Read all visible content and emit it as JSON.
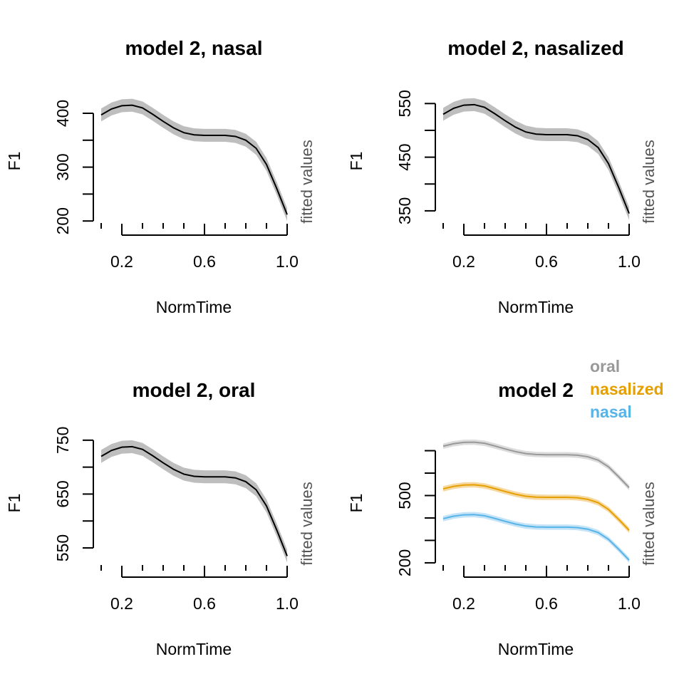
{
  "chart_data": [
    {
      "type": "line",
      "title": "model 2, nasal",
      "xlabel": "NormTime",
      "ylabel": "F1",
      "side_label": "fitted values",
      "xlim": [
        0.1,
        1.0
      ],
      "xticks": [
        0.2,
        0.6,
        {
          "value": 1,
          "label": "1.0"
        }
      ],
      "minor_xticks": [
        0.1,
        0.3,
        0.4,
        0.5,
        0.7,
        0.8,
        0.9
      ],
      "ylim": [
        187,
        441
      ],
      "yticks": [
        200,
        300,
        400
      ],
      "minor_yticks": [
        250,
        350
      ],
      "x": [
        0.1,
        0.15,
        0.2,
        0.25,
        0.3,
        0.35,
        0.4,
        0.45,
        0.5,
        0.55,
        0.6,
        0.65,
        0.7,
        0.75,
        0.8,
        0.85,
        0.9,
        0.95,
        1.0
      ],
      "series": [
        {
          "color": "#000000",
          "band_color": "#bebebe",
          "values": [
            397,
            408,
            414,
            415,
            410,
            398,
            385,
            373,
            364,
            360,
            359,
            359,
            359,
            357,
            350,
            335,
            305,
            260,
            212
          ],
          "lower": [
            385,
            396,
            402,
            403,
            398,
            386,
            373,
            361,
            352,
            348,
            347,
            347,
            347,
            345,
            338,
            323,
            293,
            248,
            200
          ],
          "upper": [
            409,
            420,
            426,
            427,
            422,
            410,
            397,
            385,
            376,
            372,
            371,
            371,
            371,
            369,
            362,
            347,
            317,
            272,
            224
          ]
        }
      ]
    },
    {
      "type": "line",
      "title": "model 2, nasalized",
      "xlabel": "NormTime",
      "ylabel": "F1",
      "side_label": "fitted values",
      "xlim": [
        0.1,
        1.0
      ],
      "xticks": [
        0.2,
        0.6,
        {
          "value": 1,
          "label": "1.0"
        }
      ],
      "minor_xticks": [
        0.1,
        0.3,
        0.4,
        0.5,
        0.7,
        0.8,
        0.9
      ],
      "ylim": [
        318,
        573
      ],
      "yticks": [
        350,
        450,
        550
      ],
      "minor_yticks": [
        400,
        500
      ],
      "x": [
        0.1,
        0.15,
        0.2,
        0.25,
        0.3,
        0.35,
        0.4,
        0.45,
        0.5,
        0.55,
        0.6,
        0.65,
        0.7,
        0.75,
        0.8,
        0.85,
        0.9,
        0.95,
        1.0
      ],
      "series": [
        {
          "color": "#000000",
          "band_color": "#bebebe",
          "values": [
            530,
            541,
            547,
            548,
            543,
            531,
            518,
            506,
            497,
            493,
            492,
            492,
            492,
            490,
            483,
            468,
            438,
            393,
            345
          ],
          "lower": [
            518,
            529,
            535,
            536,
            531,
            519,
            506,
            494,
            485,
            481,
            480,
            480,
            480,
            478,
            471,
            456,
            426,
            381,
            333
          ],
          "upper": [
            542,
            553,
            559,
            560,
            555,
            543,
            530,
            518,
            509,
            505,
            504,
            504,
            504,
            502,
            495,
            480,
            450,
            405,
            357
          ]
        }
      ]
    },
    {
      "type": "line",
      "title": "model 2, oral",
      "xlabel": "NormTime",
      "ylabel": "F1",
      "side_label": "fitted values",
      "xlim": [
        0.1,
        1.0
      ],
      "xticks": [
        0.2,
        0.6,
        {
          "value": 1,
          "label": "1.0"
        }
      ],
      "minor_xticks": [
        0.1,
        0.3,
        0.4,
        0.5,
        0.7,
        0.8,
        0.9
      ],
      "ylim": [
        509,
        763
      ],
      "yticks": [
        550,
        650,
        750
      ],
      "minor_yticks": [
        600,
        700
      ],
      "x": [
        0.1,
        0.15,
        0.2,
        0.25,
        0.3,
        0.35,
        0.4,
        0.45,
        0.5,
        0.55,
        0.6,
        0.65,
        0.7,
        0.75,
        0.8,
        0.85,
        0.9,
        0.95,
        1.0
      ],
      "series": [
        {
          "color": "#000000",
          "band_color": "#bebebe",
          "values": [
            720,
            731,
            737,
            738,
            733,
            721,
            708,
            696,
            687,
            683,
            682,
            682,
            682,
            680,
            673,
            658,
            628,
            583,
            535
          ],
          "lower": [
            708,
            719,
            725,
            726,
            721,
            709,
            696,
            684,
            675,
            671,
            670,
            670,
            670,
            668,
            661,
            646,
            616,
            571,
            523
          ],
          "upper": [
            732,
            743,
            749,
            750,
            745,
            733,
            720,
            708,
            699,
            695,
            694,
            694,
            694,
            692,
            685,
            670,
            640,
            595,
            547
          ]
        }
      ]
    },
    {
      "type": "line",
      "title": "model 2",
      "xlabel": "NormTime",
      "ylabel": "F1",
      "side_label": "fitted values",
      "xlim": [
        0.1,
        1.0
      ],
      "xticks": [
        0.2,
        0.6,
        {
          "value": 1,
          "label": "1.0"
        }
      ],
      "minor_xticks": [
        0.1,
        0.3,
        0.4,
        0.5,
        0.7,
        0.8,
        0.9
      ],
      "ylim": [
        168,
        778
      ],
      "yticks": [
        200,
        500
      ],
      "minor_yticks": [
        300,
        400,
        600,
        700
      ],
      "legend": "top-right",
      "x": [
        0.1,
        0.15,
        0.2,
        0.25,
        0.3,
        0.35,
        0.4,
        0.45,
        0.5,
        0.55,
        0.6,
        0.65,
        0.7,
        0.75,
        0.8,
        0.85,
        0.9,
        0.95,
        1.0
      ],
      "series": [
        {
          "name": "oral",
          "color": "#999999",
          "band_color": "#dcdcdc",
          "values": [
            720,
            731,
            737,
            738,
            733,
            721,
            708,
            696,
            687,
            683,
            682,
            682,
            682,
            680,
            673,
            658,
            628,
            583,
            535
          ],
          "lower": [
            708,
            719,
            725,
            726,
            721,
            709,
            696,
            684,
            675,
            671,
            670,
            670,
            670,
            668,
            661,
            646,
            616,
            571,
            523
          ],
          "upper": [
            732,
            743,
            749,
            750,
            745,
            733,
            720,
            708,
            699,
            695,
            694,
            694,
            694,
            692,
            685,
            670,
            640,
            595,
            547
          ]
        },
        {
          "name": "nasalized",
          "color": "#E69F00",
          "band_color": "#f6d9a0",
          "values": [
            530,
            541,
            547,
            548,
            543,
            531,
            518,
            506,
            497,
            493,
            492,
            492,
            492,
            490,
            483,
            468,
            438,
            393,
            345
          ],
          "lower": [
            518,
            529,
            535,
            536,
            531,
            519,
            506,
            494,
            485,
            481,
            480,
            480,
            480,
            478,
            471,
            456,
            426,
            381,
            333
          ],
          "upper": [
            542,
            553,
            559,
            560,
            555,
            543,
            530,
            518,
            509,
            505,
            504,
            504,
            504,
            502,
            495,
            480,
            450,
            405,
            357
          ]
        },
        {
          "name": "nasal",
          "color": "#56B4E9",
          "band_color": "#c4e3f6",
          "values": [
            397,
            408,
            414,
            415,
            410,
            398,
            385,
            373,
            364,
            360,
            359,
            359,
            359,
            357,
            350,
            335,
            305,
            260,
            212
          ],
          "lower": [
            385,
            396,
            402,
            403,
            398,
            386,
            373,
            361,
            352,
            348,
            347,
            347,
            347,
            345,
            338,
            323,
            293,
            248,
            200
          ],
          "upper": [
            409,
            420,
            426,
            427,
            422,
            410,
            397,
            385,
            376,
            372,
            371,
            371,
            371,
            369,
            362,
            347,
            317,
            272,
            224
          ]
        }
      ]
    }
  ]
}
